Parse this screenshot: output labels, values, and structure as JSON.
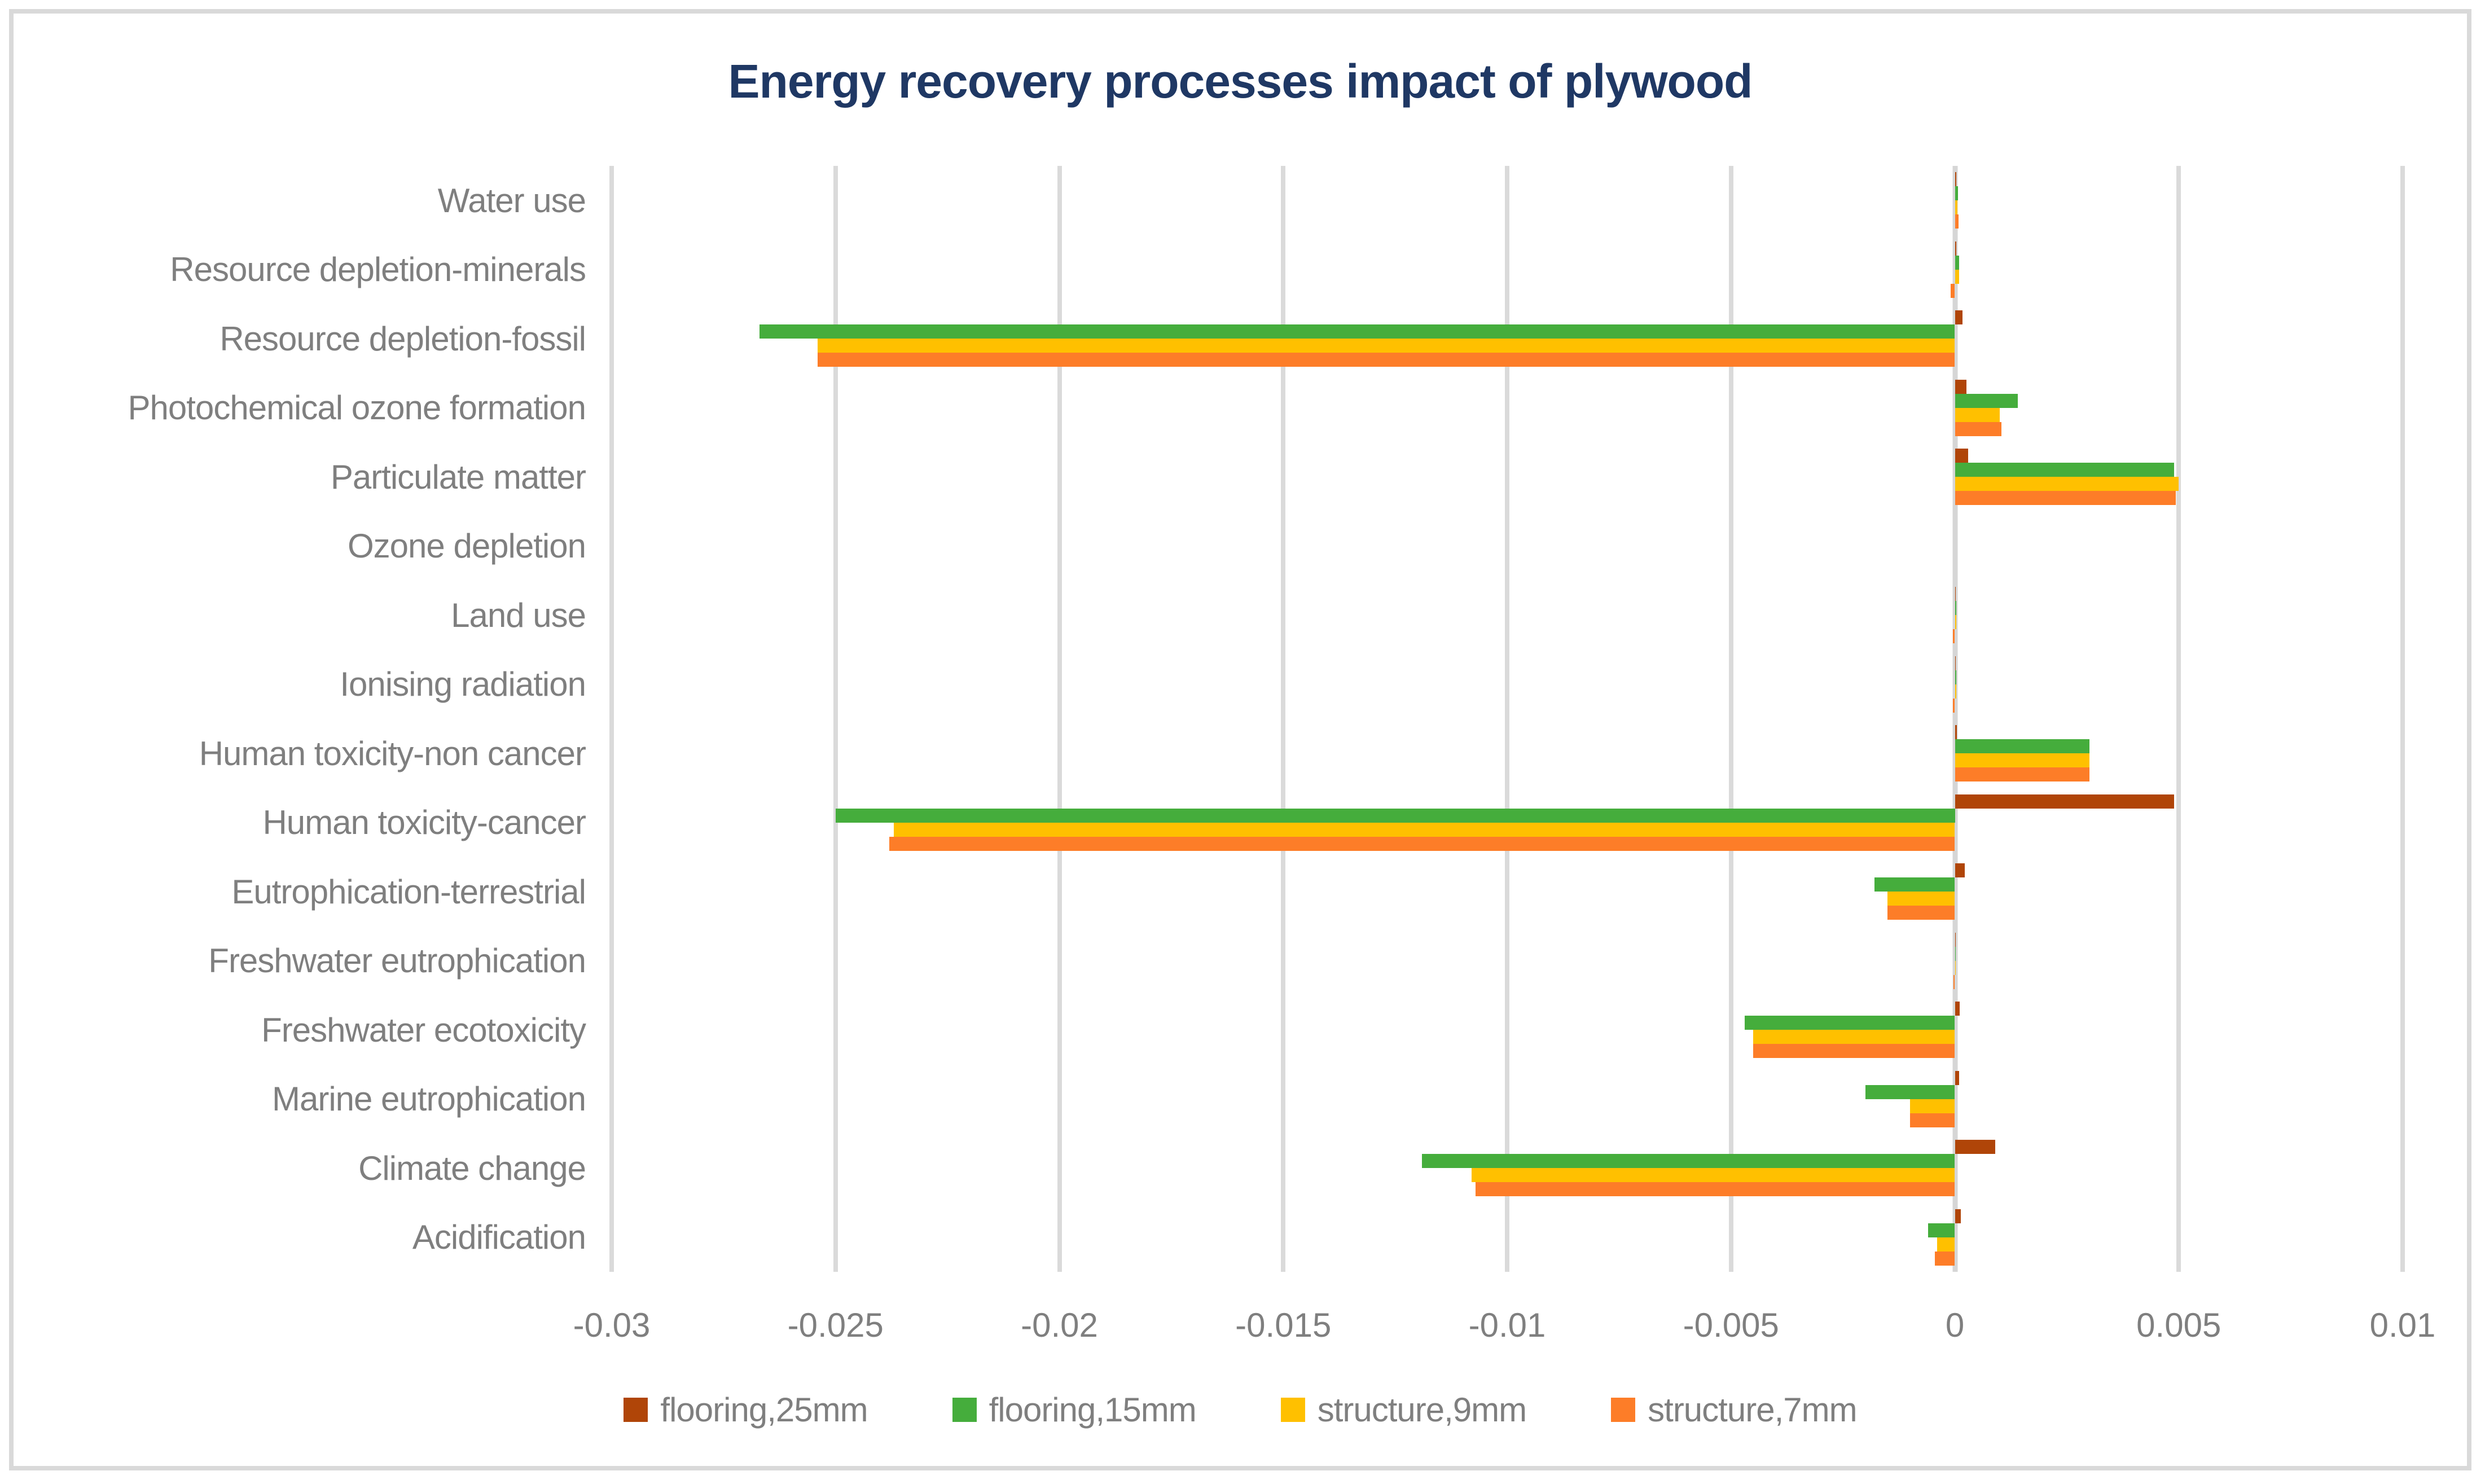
{
  "title_color": "#1F3864",
  "text_color": "#7F7F7F",
  "grid_color": "#DADADA",
  "border_color": "#D9D9D9",
  "background": "#FFFFFF",
  "chart_data": {
    "type": "bar",
    "orientation": "horizontal",
    "title": "Energy recovery processes impact of plywood",
    "xlabel": "",
    "ylabel": "",
    "xlim": [
      -0.03,
      0.01
    ],
    "grid": true,
    "legend_position": "bottom",
    "xticks": [
      -0.03,
      -0.025,
      -0.02,
      -0.015,
      -0.01,
      -0.005,
      0,
      0.005,
      0.01
    ],
    "xtick_labels": [
      "-0.03",
      "-0.025",
      "-0.02",
      "-0.015",
      "-0.01",
      "-0.005",
      "0",
      "0.005",
      "0.01"
    ],
    "categories": [
      "Water use",
      "Resource depletion-minerals",
      "Resource depletion-fossil",
      "Photochemical ozone formation",
      "Particulate matter",
      "Ozone depletion",
      "Land use",
      "Ionising radiation",
      "Human toxicity-non cancer",
      "Human toxicity-cancer",
      "Eutrophication-terrestrial",
      "Freshwater eutrophication",
      "Freshwater ecotoxicity",
      "Marine eutrophication",
      "Climate change",
      "Acidification"
    ],
    "series": [
      {
        "name": "flooring,25mm",
        "color": "#B04508",
        "values": [
          3e-05,
          3e-05,
          0.00017,
          0.00026,
          0.0003,
          0,
          2e-05,
          2e-05,
          5e-05,
          0.0049,
          0.00022,
          2e-05,
          0.00011,
          0.0001,
          0.0009,
          0.00013
        ]
      },
      {
        "name": "flooring,15mm",
        "color": "#45AD3C",
        "values": [
          7e-05,
          9e-05,
          -0.0267,
          0.0014,
          0.0049,
          0,
          3e-05,
          3e-05,
          0.003,
          -0.025,
          -0.0018,
          2e-05,
          -0.0047,
          -0.002,
          -0.0119,
          -0.0006
        ]
      },
      {
        "name": "structure,9mm",
        "color": "#FFC000",
        "values": [
          6e-05,
          9e-05,
          -0.0254,
          0.001,
          0.005,
          0,
          3e-05,
          3e-05,
          0.003,
          -0.0237,
          -0.0015,
          2e-05,
          -0.0045,
          -0.001,
          -0.0108,
          -0.0004
        ]
      },
      {
        "name": "structure,7mm",
        "color": "#FD7D28",
        "values": [
          8e-05,
          -0.0001,
          -0.0254,
          0.00104,
          0.00493,
          0,
          -5e-05,
          -5e-05,
          0.003,
          -0.0238,
          -0.0015,
          -3e-05,
          -0.0045,
          -0.001,
          -0.0107,
          -0.00045
        ]
      }
    ]
  }
}
